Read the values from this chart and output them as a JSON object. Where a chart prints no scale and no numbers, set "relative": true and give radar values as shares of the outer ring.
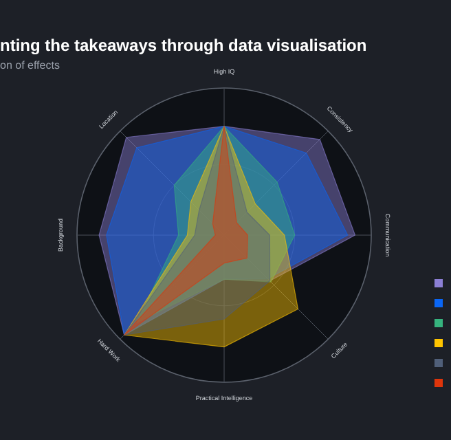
{
  "chart_data": {
    "type": "radar",
    "title": "nting the takeaways through data visualisation",
    "subtitle": "on of effects",
    "relative": true,
    "categories": [
      "High IQ",
      "Consistency",
      "Communication",
      "Culture",
      "Practical Intelligence",
      "Hard Work",
      "Background",
      "Location"
    ],
    "series": [
      {
        "color": "#8b7fd4",
        "values": [
          0.74,
          0.92,
          0.89,
          0.44,
          0.3,
          0.96,
          0.85,
          0.94
        ]
      },
      {
        "color": "#0a66f5",
        "values": [
          0.74,
          0.79,
          0.84,
          0.42,
          0.3,
          0.96,
          0.8,
          0.84
        ]
      },
      {
        "color": "#36b37e",
        "values": [
          0.74,
          0.51,
          0.48,
          0.45,
          0.3,
          0.84,
          0.31,
          0.48
        ]
      },
      {
        "color": "#ffc400",
        "values": [
          0.74,
          0.3,
          0.41,
          0.71,
          0.76,
          0.96,
          0.25,
          0.32
        ]
      },
      {
        "color": "#505f79",
        "values": [
          0.74,
          0.22,
          0.31,
          0.44,
          0.57,
          0.96,
          0.2,
          0.24
        ]
      },
      {
        "color": "#de350b",
        "values": [
          0.74,
          0.12,
          0.16,
          0.22,
          0.19,
          0.96,
          0.06,
          0.11
        ]
      }
    ]
  }
}
